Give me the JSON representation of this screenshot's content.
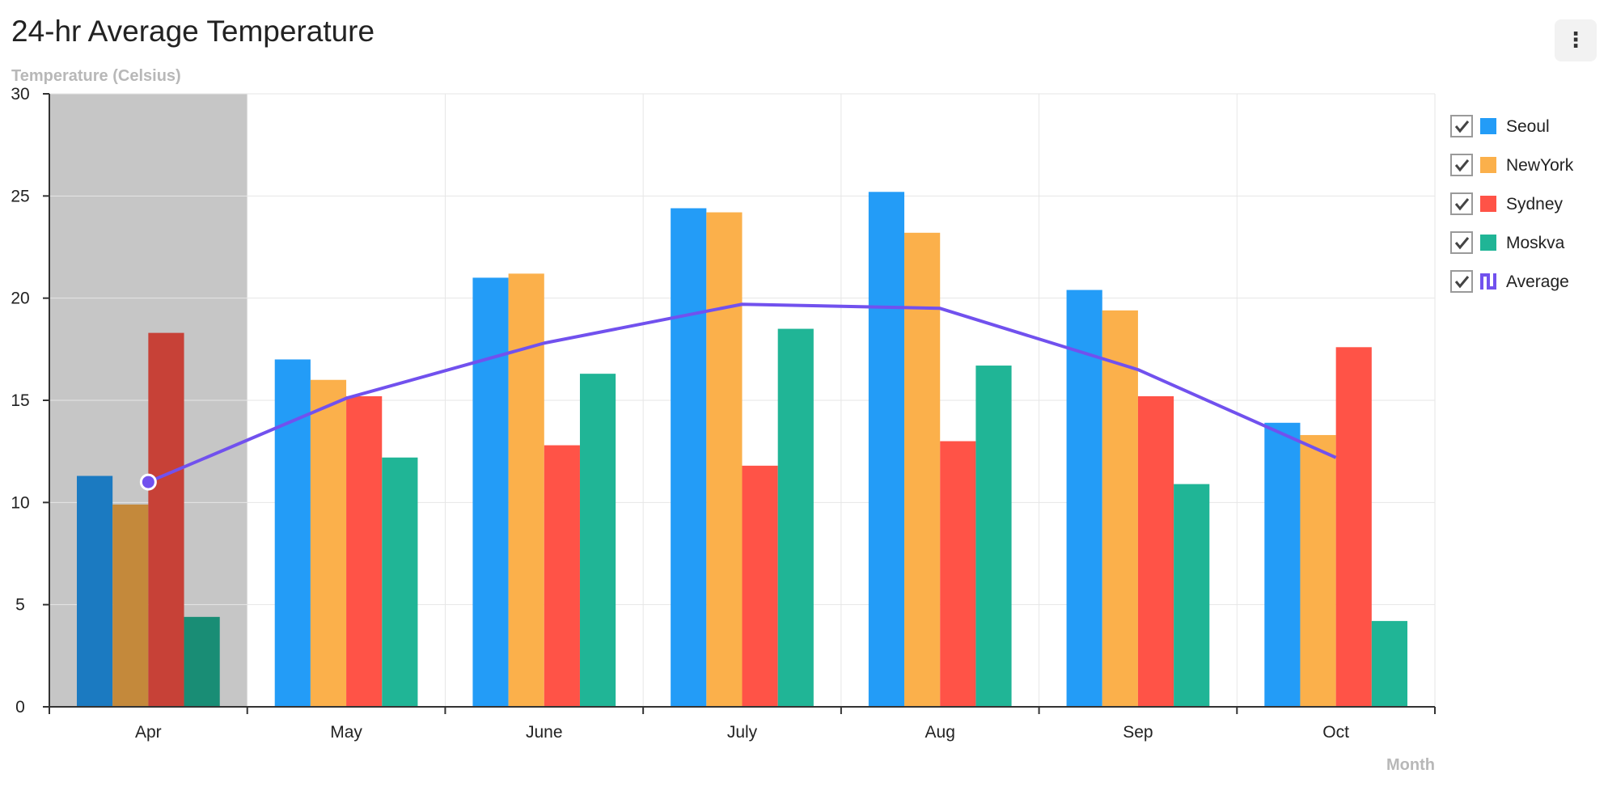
{
  "chart_data": {
    "type": "bar",
    "title": "24-hr Average Temperature",
    "ylabel": "Temperature (Celsius)",
    "xlabel": "Month",
    "categories": [
      "Apr",
      "May",
      "June",
      "July",
      "Aug",
      "Sep",
      "Oct"
    ],
    "ylim": [
      0,
      30
    ],
    "yticks": [
      "0",
      "5",
      "10",
      "15",
      "20",
      "25",
      "30"
    ],
    "series": [
      {
        "name": "Seoul",
        "type": "bar",
        "color": "#239cf7",
        "values": [
          11.3,
          17.0,
          21.0,
          24.4,
          25.2,
          20.4,
          13.9
        ]
      },
      {
        "name": "NewYork",
        "type": "bar",
        "color": "#fbb04b",
        "values": [
          9.9,
          16.0,
          21.2,
          24.2,
          23.2,
          19.4,
          13.3
        ]
      },
      {
        "name": "Sydney",
        "type": "bar",
        "color": "#ff5347",
        "values": [
          18.3,
          15.2,
          12.8,
          11.8,
          13.0,
          15.2,
          17.6
        ]
      },
      {
        "name": "Moskva",
        "type": "bar",
        "color": "#20b596",
        "values": [
          4.4,
          12.2,
          16.3,
          18.5,
          16.7,
          10.9,
          4.2
        ]
      },
      {
        "name": "Average",
        "type": "line",
        "color": "#7151ee",
        "values": [
          11.0,
          15.1,
          17.8,
          19.7,
          19.5,
          16.5,
          12.2
        ]
      }
    ],
    "highlighted_category": "Apr",
    "grid": true,
    "legend_position": "right"
  },
  "menu": {
    "label": "⋮"
  }
}
